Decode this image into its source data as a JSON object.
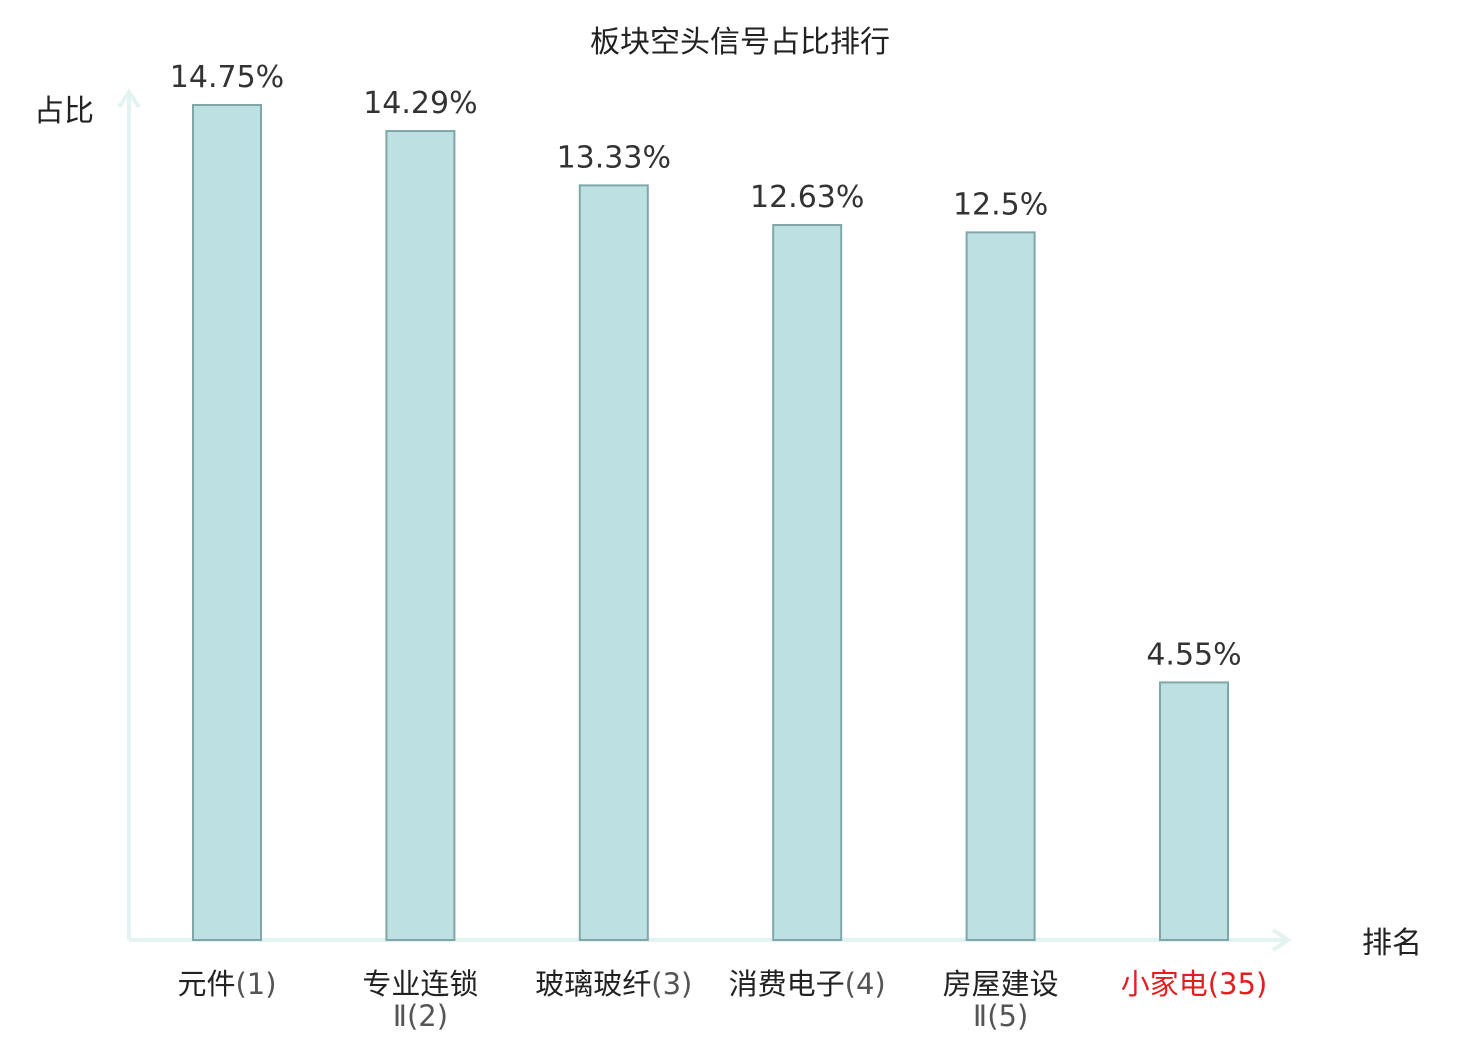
{
  "chart_data": {
    "type": "bar",
    "title": "板块空头信号占比排行",
    "ylabel": "占比",
    "xlabel": "排名",
    "categories": [
      {
        "name": "元件",
        "rank": "(1)",
        "highlight": false
      },
      {
        "name": "专业连锁",
        "name2": "Ⅱ",
        "rank": "(2)",
        "highlight": false
      },
      {
        "name": "玻璃玻纤",
        "rank": "(3)",
        "highlight": false
      },
      {
        "name": "消费电子",
        "rank": "(4)",
        "highlight": false
      },
      {
        "name": "房屋建设",
        "name2": "Ⅱ",
        "rank": "(5)",
        "highlight": false
      },
      {
        "name": "小家电",
        "rank": "(35)",
        "highlight": true
      }
    ],
    "values": [
      14.75,
      14.29,
      13.33,
      12.63,
      12.5,
      4.55
    ],
    "value_labels": [
      "14.75%",
      "14.29%",
      "13.33%",
      "12.63%",
      "12.5%",
      "4.55%"
    ],
    "ylim": [
      0,
      14.75
    ],
    "grid": false,
    "legend": "none",
    "colors": {
      "bar_fill": "#bde0e3",
      "bar_stroke": "#7fa6a9",
      "axis": "#e2f3f1",
      "text": "#333333",
      "rank_text": "#555555",
      "highlight": "#e02020"
    }
  }
}
